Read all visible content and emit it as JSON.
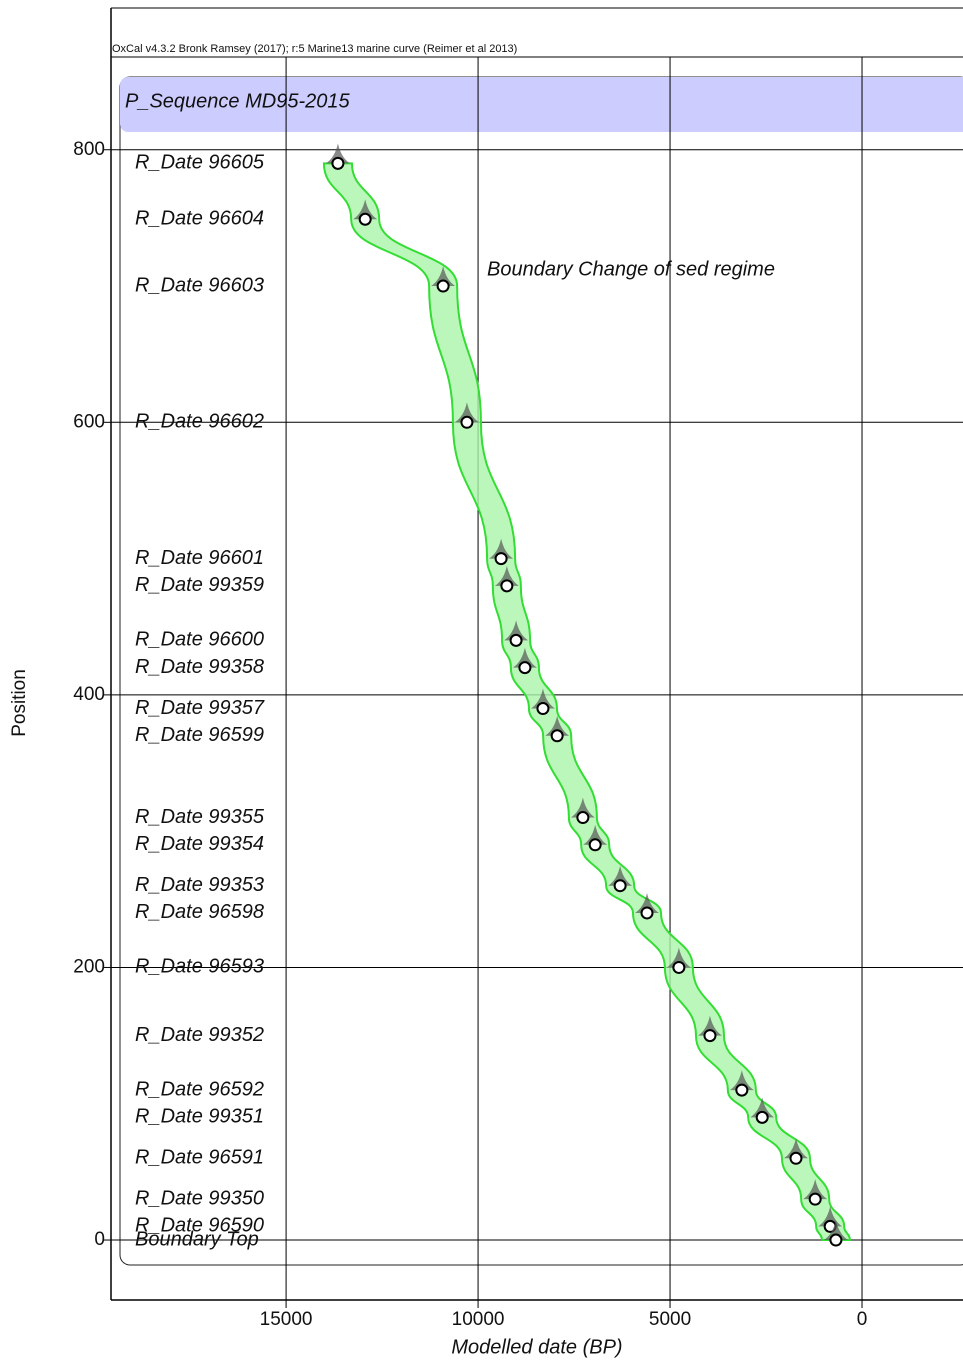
{
  "chart_data": {
    "type": "scatter",
    "title": "OxCal v4.3.2 Bronk Ramsey (2017); r:5 Marine13 marine curve (Reimer et al 2013)",
    "sequence_label": "P_Sequence MD95-2015",
    "annotation": "Boundary Change of sed regime",
    "xlabel": "Modelled date (BP)",
    "ylabel": "Position",
    "labels": [
      "R_Date 96605",
      "R_Date 96604",
      "R_Date 96603",
      "R_Date 96602",
      "R_Date 96601",
      "R_Date 99359",
      "R_Date 96600",
      "R_Date 99358",
      "R_Date 99357",
      "R_Date 96599",
      "R_Date 99355",
      "R_Date 99354",
      "R_Date 99353",
      "R_Date 96598",
      "R_Date 96593",
      "R_Date 99352",
      "R_Date 96592",
      "R_Date 99351",
      "R_Date 96591",
      "R_Date 99350",
      "R_Date 96590",
      "Boundary Top"
    ],
    "x": [
      13650,
      12940,
      10910,
      10290,
      9400,
      9250,
      9010,
      8780,
      8310,
      7940,
      7270,
      6950,
      6300,
      5600,
      4770,
      3960,
      3130,
      2600,
      1720,
      1220,
      830,
      680
    ],
    "values": [
      790,
      749,
      700,
      600,
      500,
      480,
      440,
      420,
      390,
      370,
      310,
      290,
      260,
      240,
      200,
      150,
      110,
      90,
      60,
      30,
      10,
      0
    ],
    "color": "#33dd33",
    "xlim": [
      19560,
      -2630
    ],
    "xticks": [
      15000,
      10000,
      5000,
      0
    ],
    "ylim": [
      -44,
      904
    ],
    "yticks": [
      0,
      200,
      400,
      600,
      800
    ],
    "grid": true
  }
}
